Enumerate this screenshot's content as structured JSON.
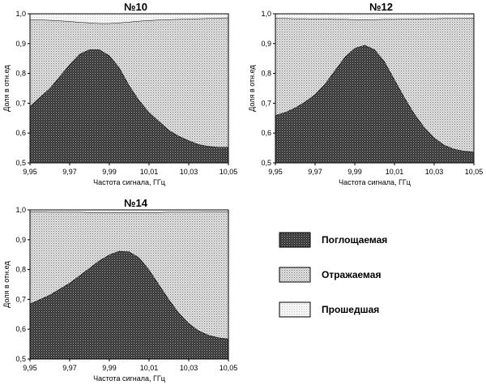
{
  "chart_data": [
    {
      "type": "area",
      "title": "№10",
      "xlabel": "Частота сигнала, ГГц",
      "ylabel": "Доля в отн.ед",
      "xlim": [
        9.95,
        10.05
      ],
      "ylim": [
        0.5,
        1.0
      ],
      "x_ticks": [
        "9,95",
        "9,97",
        "9,99",
        "10,01",
        "10,03",
        "10,05"
      ],
      "y_ticks": [
        "0,5",
        "0,6",
        "0,7",
        "0,8",
        "0,9",
        "1,0"
      ],
      "x": [
        9.95,
        9.955,
        9.96,
        9.965,
        9.97,
        9.975,
        9.98,
        9.985,
        9.99,
        9.995,
        10.0,
        10.005,
        10.01,
        10.015,
        10.02,
        10.025,
        10.03,
        10.035,
        10.04,
        10.045,
        10.05
      ],
      "series": [
        {
          "name": "Поглощаемая",
          "values": [
            0.69,
            0.72,
            0.75,
            0.79,
            0.83,
            0.865,
            0.88,
            0.88,
            0.86,
            0.82,
            0.76,
            0.71,
            0.67,
            0.64,
            0.61,
            0.59,
            0.575,
            0.562,
            0.556,
            0.553,
            0.553
          ]
        },
        {
          "name": "Отражаемая",
          "values": [
            0.98,
            0.98,
            0.979,
            0.977,
            0.975,
            0.972,
            0.97,
            0.968,
            0.968,
            0.97,
            0.973,
            0.976,
            0.978,
            0.98,
            0.981,
            0.982,
            0.983,
            0.984,
            0.985,
            0.986,
            0.987
          ]
        },
        {
          "name": "Прошедшая",
          "values": [
            1.0,
            1.0,
            1.0,
            1.0,
            1.0,
            1.0,
            1.0,
            1.0,
            1.0,
            1.0,
            1.0,
            1.0,
            1.0,
            1.0,
            1.0,
            1.0,
            1.0,
            1.0,
            1.0,
            1.0,
            1.0
          ]
        }
      ]
    },
    {
      "type": "area",
      "title": "№12",
      "xlabel": "Частота сигнала, ГГц",
      "ylabel": "Доля в отн.ед",
      "xlim": [
        9.95,
        10.05
      ],
      "ylim": [
        0.5,
        1.0
      ],
      "x_ticks": [
        "9,95",
        "9,97",
        "9,99",
        "10,01",
        "10,03",
        "10,05"
      ],
      "y_ticks": [
        "0,5",
        "0,6",
        "0,7",
        "0,8",
        "0,9",
        "1,0"
      ],
      "x": [
        9.95,
        9.955,
        9.96,
        9.965,
        9.97,
        9.975,
        9.98,
        9.985,
        9.99,
        9.995,
        10.0,
        10.005,
        10.01,
        10.015,
        10.02,
        10.025,
        10.03,
        10.035,
        10.04,
        10.045,
        10.05
      ],
      "series": [
        {
          "name": "Поглощаемая",
          "values": [
            0.66,
            0.67,
            0.685,
            0.705,
            0.73,
            0.765,
            0.81,
            0.855,
            0.885,
            0.895,
            0.88,
            0.84,
            0.78,
            0.72,
            0.665,
            0.62,
            0.585,
            0.56,
            0.547,
            0.54,
            0.537
          ]
        },
        {
          "name": "Отражаемая",
          "values": [
            0.985,
            0.985,
            0.984,
            0.984,
            0.983,
            0.983,
            0.982,
            0.982,
            0.981,
            0.981,
            0.981,
            0.982,
            0.982,
            0.983,
            0.983,
            0.984,
            0.984,
            0.985,
            0.985,
            0.986,
            0.986
          ]
        },
        {
          "name": "Прошедшая",
          "values": [
            1.0,
            1.0,
            1.0,
            1.0,
            1.0,
            1.0,
            1.0,
            1.0,
            1.0,
            1.0,
            1.0,
            1.0,
            1.0,
            1.0,
            1.0,
            1.0,
            1.0,
            1.0,
            1.0,
            1.0,
            1.0
          ]
        }
      ]
    },
    {
      "type": "area",
      "title": "№14",
      "xlabel": "Частота сигнала, ГГц",
      "ylabel": "Доля в отн.ед",
      "xlim": [
        9.95,
        10.05
      ],
      "ylim": [
        0.5,
        1.0
      ],
      "x_ticks": [
        "9,95",
        "9,97",
        "9,99",
        "10,01",
        "10,03",
        "10,05"
      ],
      "y_ticks": [
        "0,5",
        "0,6",
        "0,7",
        "0,8",
        "0,9",
        "1,0"
      ],
      "x": [
        9.95,
        9.955,
        9.96,
        9.965,
        9.97,
        9.975,
        9.98,
        9.985,
        9.99,
        9.995,
        10.0,
        10.005,
        10.01,
        10.015,
        10.02,
        10.025,
        10.03,
        10.035,
        10.04,
        10.045,
        10.05
      ],
      "series": [
        {
          "name": "Поглощаемая",
          "values": [
            0.685,
            0.7,
            0.715,
            0.735,
            0.755,
            0.78,
            0.805,
            0.83,
            0.85,
            0.862,
            0.86,
            0.84,
            0.8,
            0.75,
            0.7,
            0.655,
            0.62,
            0.595,
            0.58,
            0.572,
            0.568
          ]
        },
        {
          "name": "Отражаемая",
          "values": [
            0.994,
            0.994,
            0.993,
            0.993,
            0.993,
            0.993,
            0.992,
            0.992,
            0.992,
            0.992,
            0.992,
            0.992,
            0.992,
            0.992,
            0.993,
            0.993,
            0.993,
            0.993,
            0.994,
            0.994,
            0.994
          ]
        },
        {
          "name": "Прошедшая",
          "values": [
            1.0,
            1.0,
            1.0,
            1.0,
            1.0,
            1.0,
            1.0,
            1.0,
            1.0,
            1.0,
            1.0,
            1.0,
            1.0,
            1.0,
            1.0,
            1.0,
            1.0,
            1.0,
            1.0,
            1.0,
            1.0
          ]
        }
      ]
    }
  ],
  "legend": {
    "placement": "bottom-right",
    "items": [
      {
        "label": "Поглощаемая",
        "pattern": "dark-crosshatch"
      },
      {
        "label": "Отражаемая",
        "pattern": "light-dots"
      },
      {
        "label": "Прошедшая",
        "pattern": "very-light-dots"
      }
    ]
  }
}
